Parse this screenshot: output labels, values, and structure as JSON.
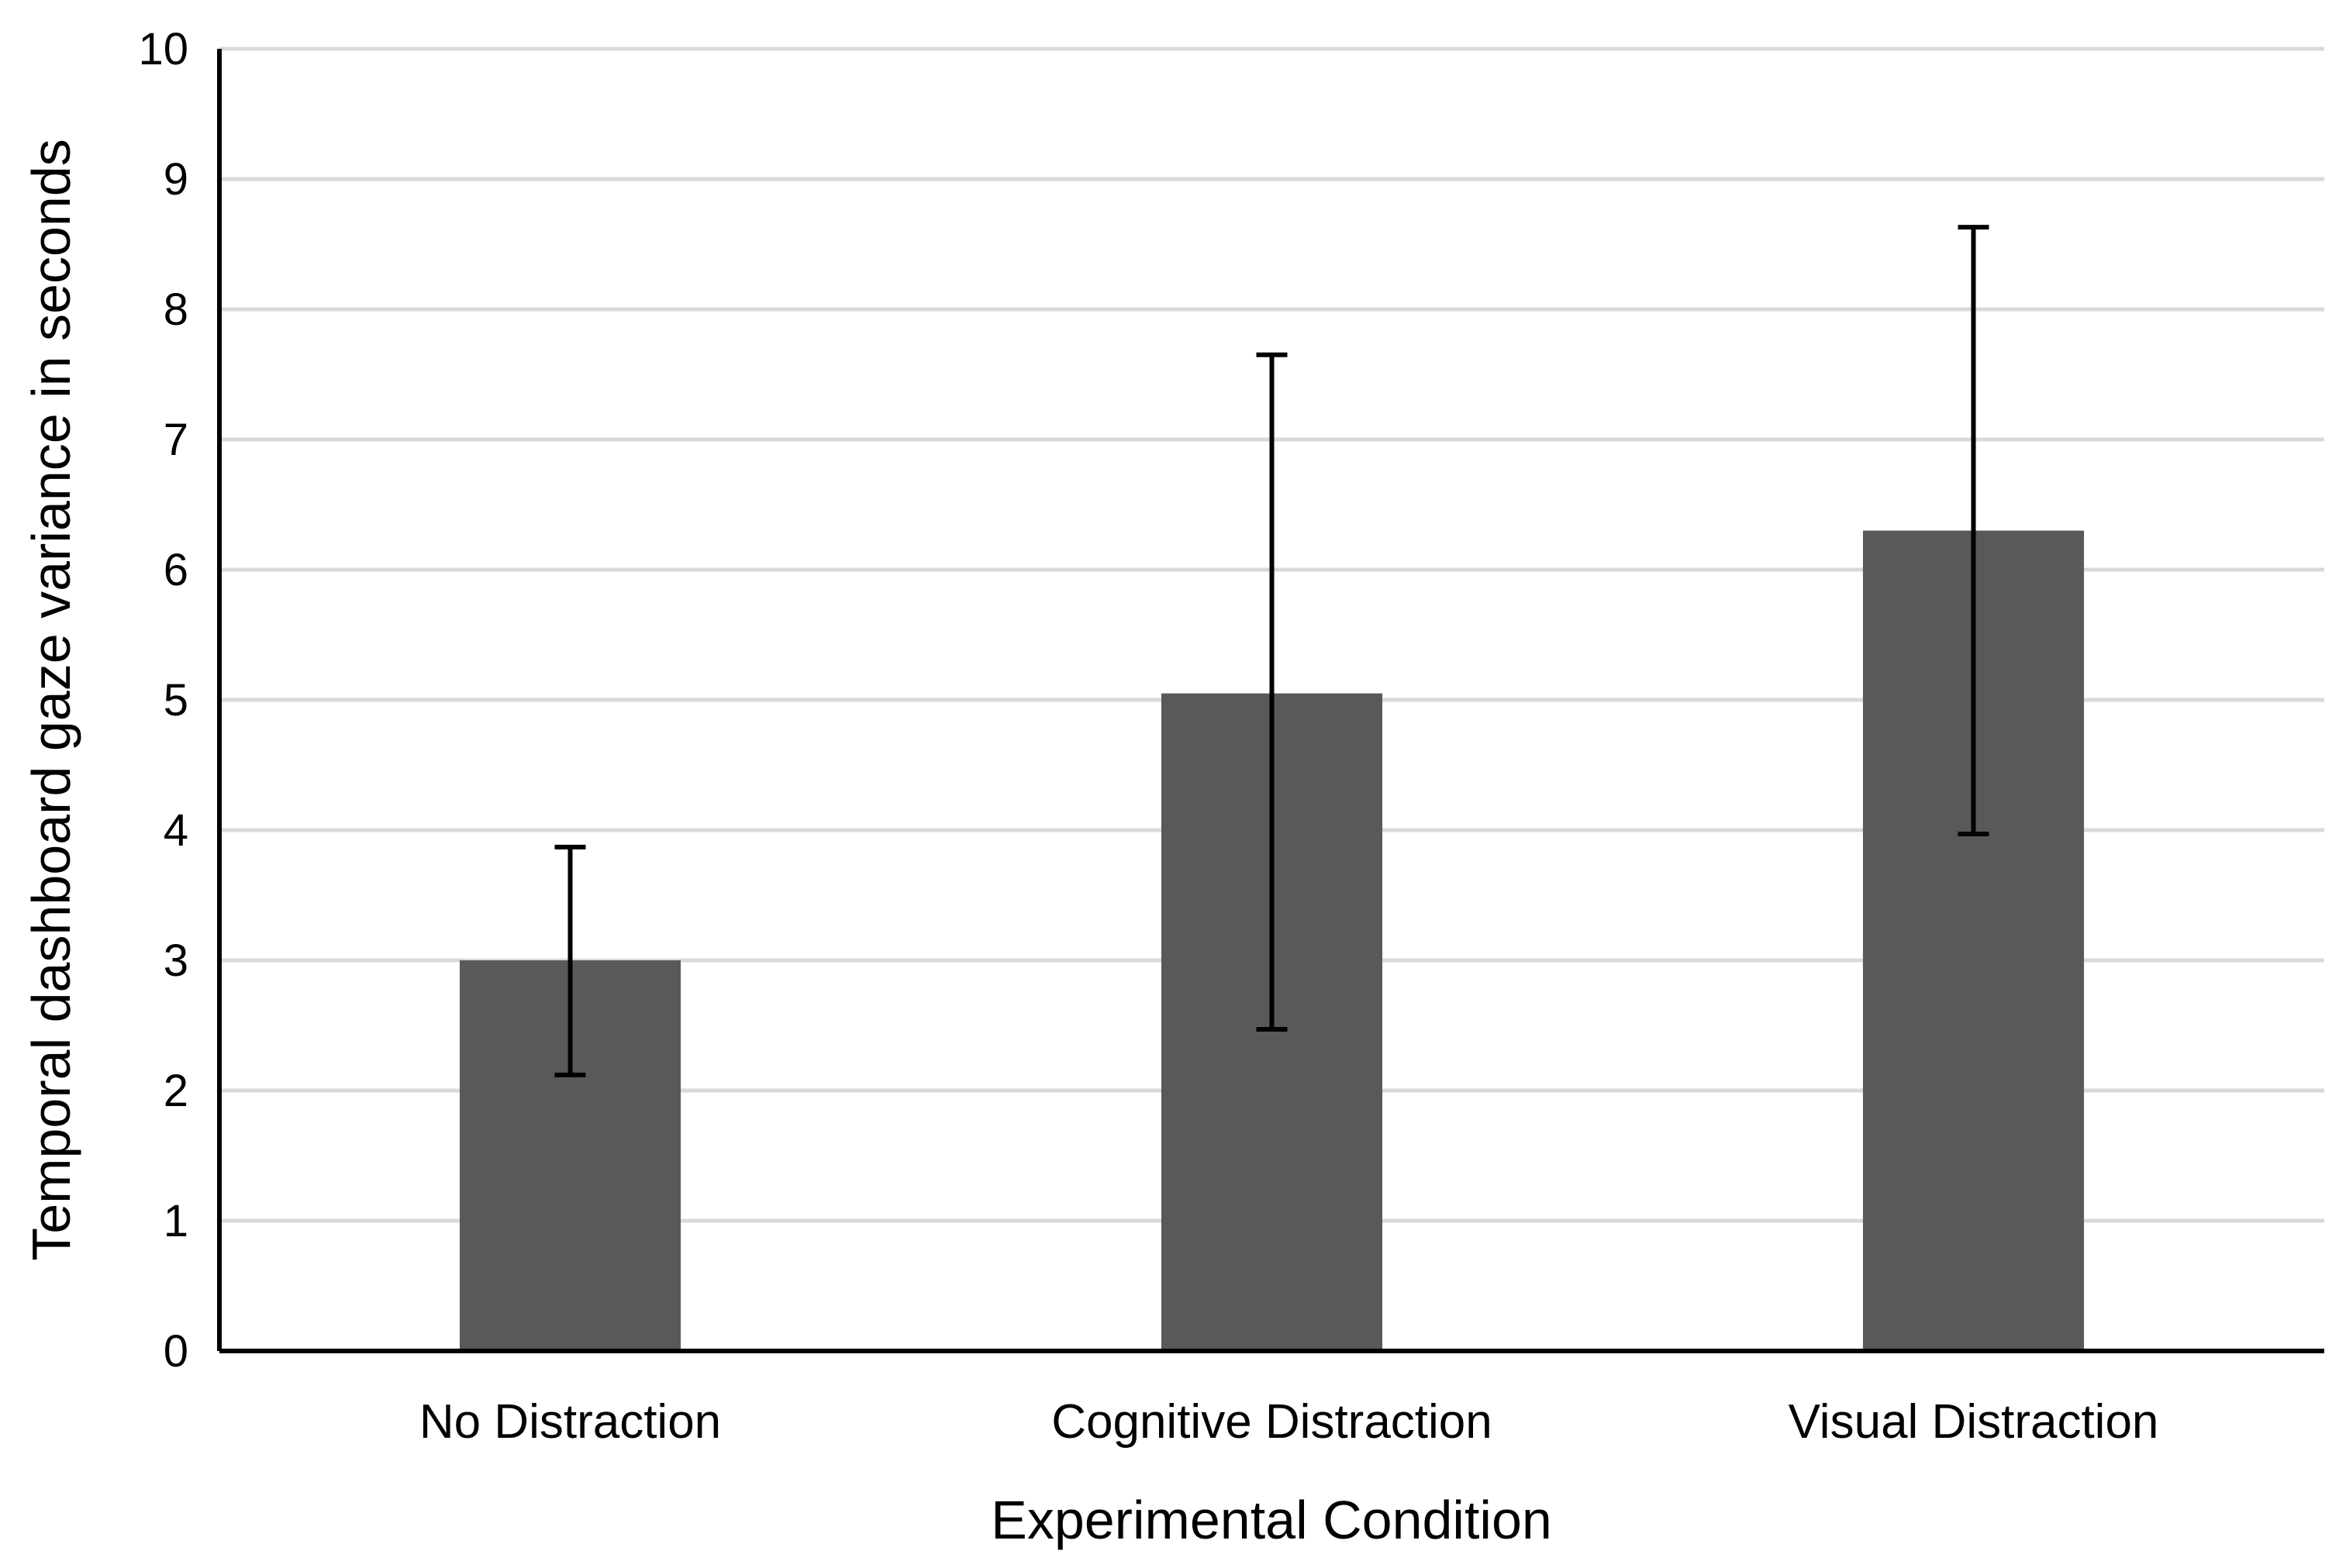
{
  "chart_data": {
    "type": "bar",
    "title": "",
    "xlabel": "Experimental Condition",
    "ylabel": "Temporal dashboard gaze variance in seconds",
    "categories": [
      "No Distraction",
      "Cognitive Distraction",
      "Visual Distraction"
    ],
    "values": [
      3.0,
      5.05,
      6.3
    ],
    "error_low": [
      2.12,
      2.47,
      3.97
    ],
    "error_high": [
      3.87,
      7.65,
      8.63
    ],
    "ylim": [
      0,
      10
    ],
    "yticks": [
      "0",
      "1",
      "2",
      "3",
      "4",
      "5",
      "6",
      "7",
      "8",
      "9",
      "10"
    ],
    "grid": true,
    "legend": "none",
    "colors": {
      "bar": "#595959",
      "grid": "#d9d9d9",
      "axis": "#000000",
      "error_bar": "#000000"
    }
  }
}
